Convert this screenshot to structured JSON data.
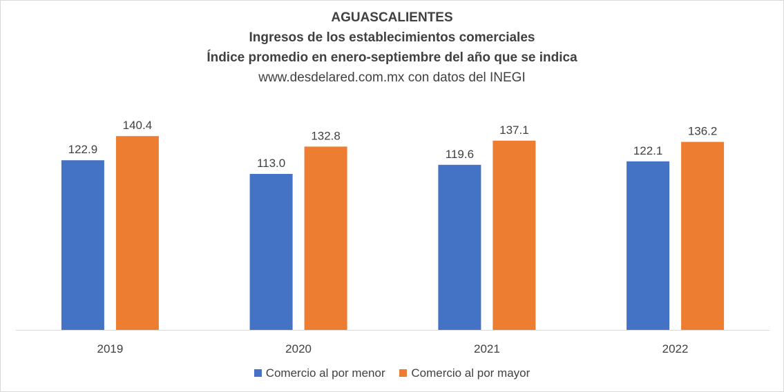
{
  "chart_data": {
    "type": "bar",
    "title": "AGUASCALIENTES",
    "subtitle_lines": [
      "Ingresos de los establecimientos comerciales",
      "Índice promedio en enero-septiembre del año que se indica"
    ],
    "source": "www.desdelared.com.mx con datos del INEGI",
    "categories": [
      "2019",
      "2020",
      "2021",
      "2022"
    ],
    "series": [
      {
        "name": "Comercio al por menor",
        "color": "#4472c4",
        "values": [
          122.9,
          113.0,
          119.6,
          122.1
        ]
      },
      {
        "name": "Comercio al por mayor",
        "color": "#ed7d31",
        "values": [
          140.4,
          132.8,
          137.1,
          136.2
        ]
      }
    ],
    "ylim": [
      0,
      160
    ],
    "grid": false,
    "legend_position": "bottom",
    "xlabel": "",
    "ylabel": ""
  }
}
